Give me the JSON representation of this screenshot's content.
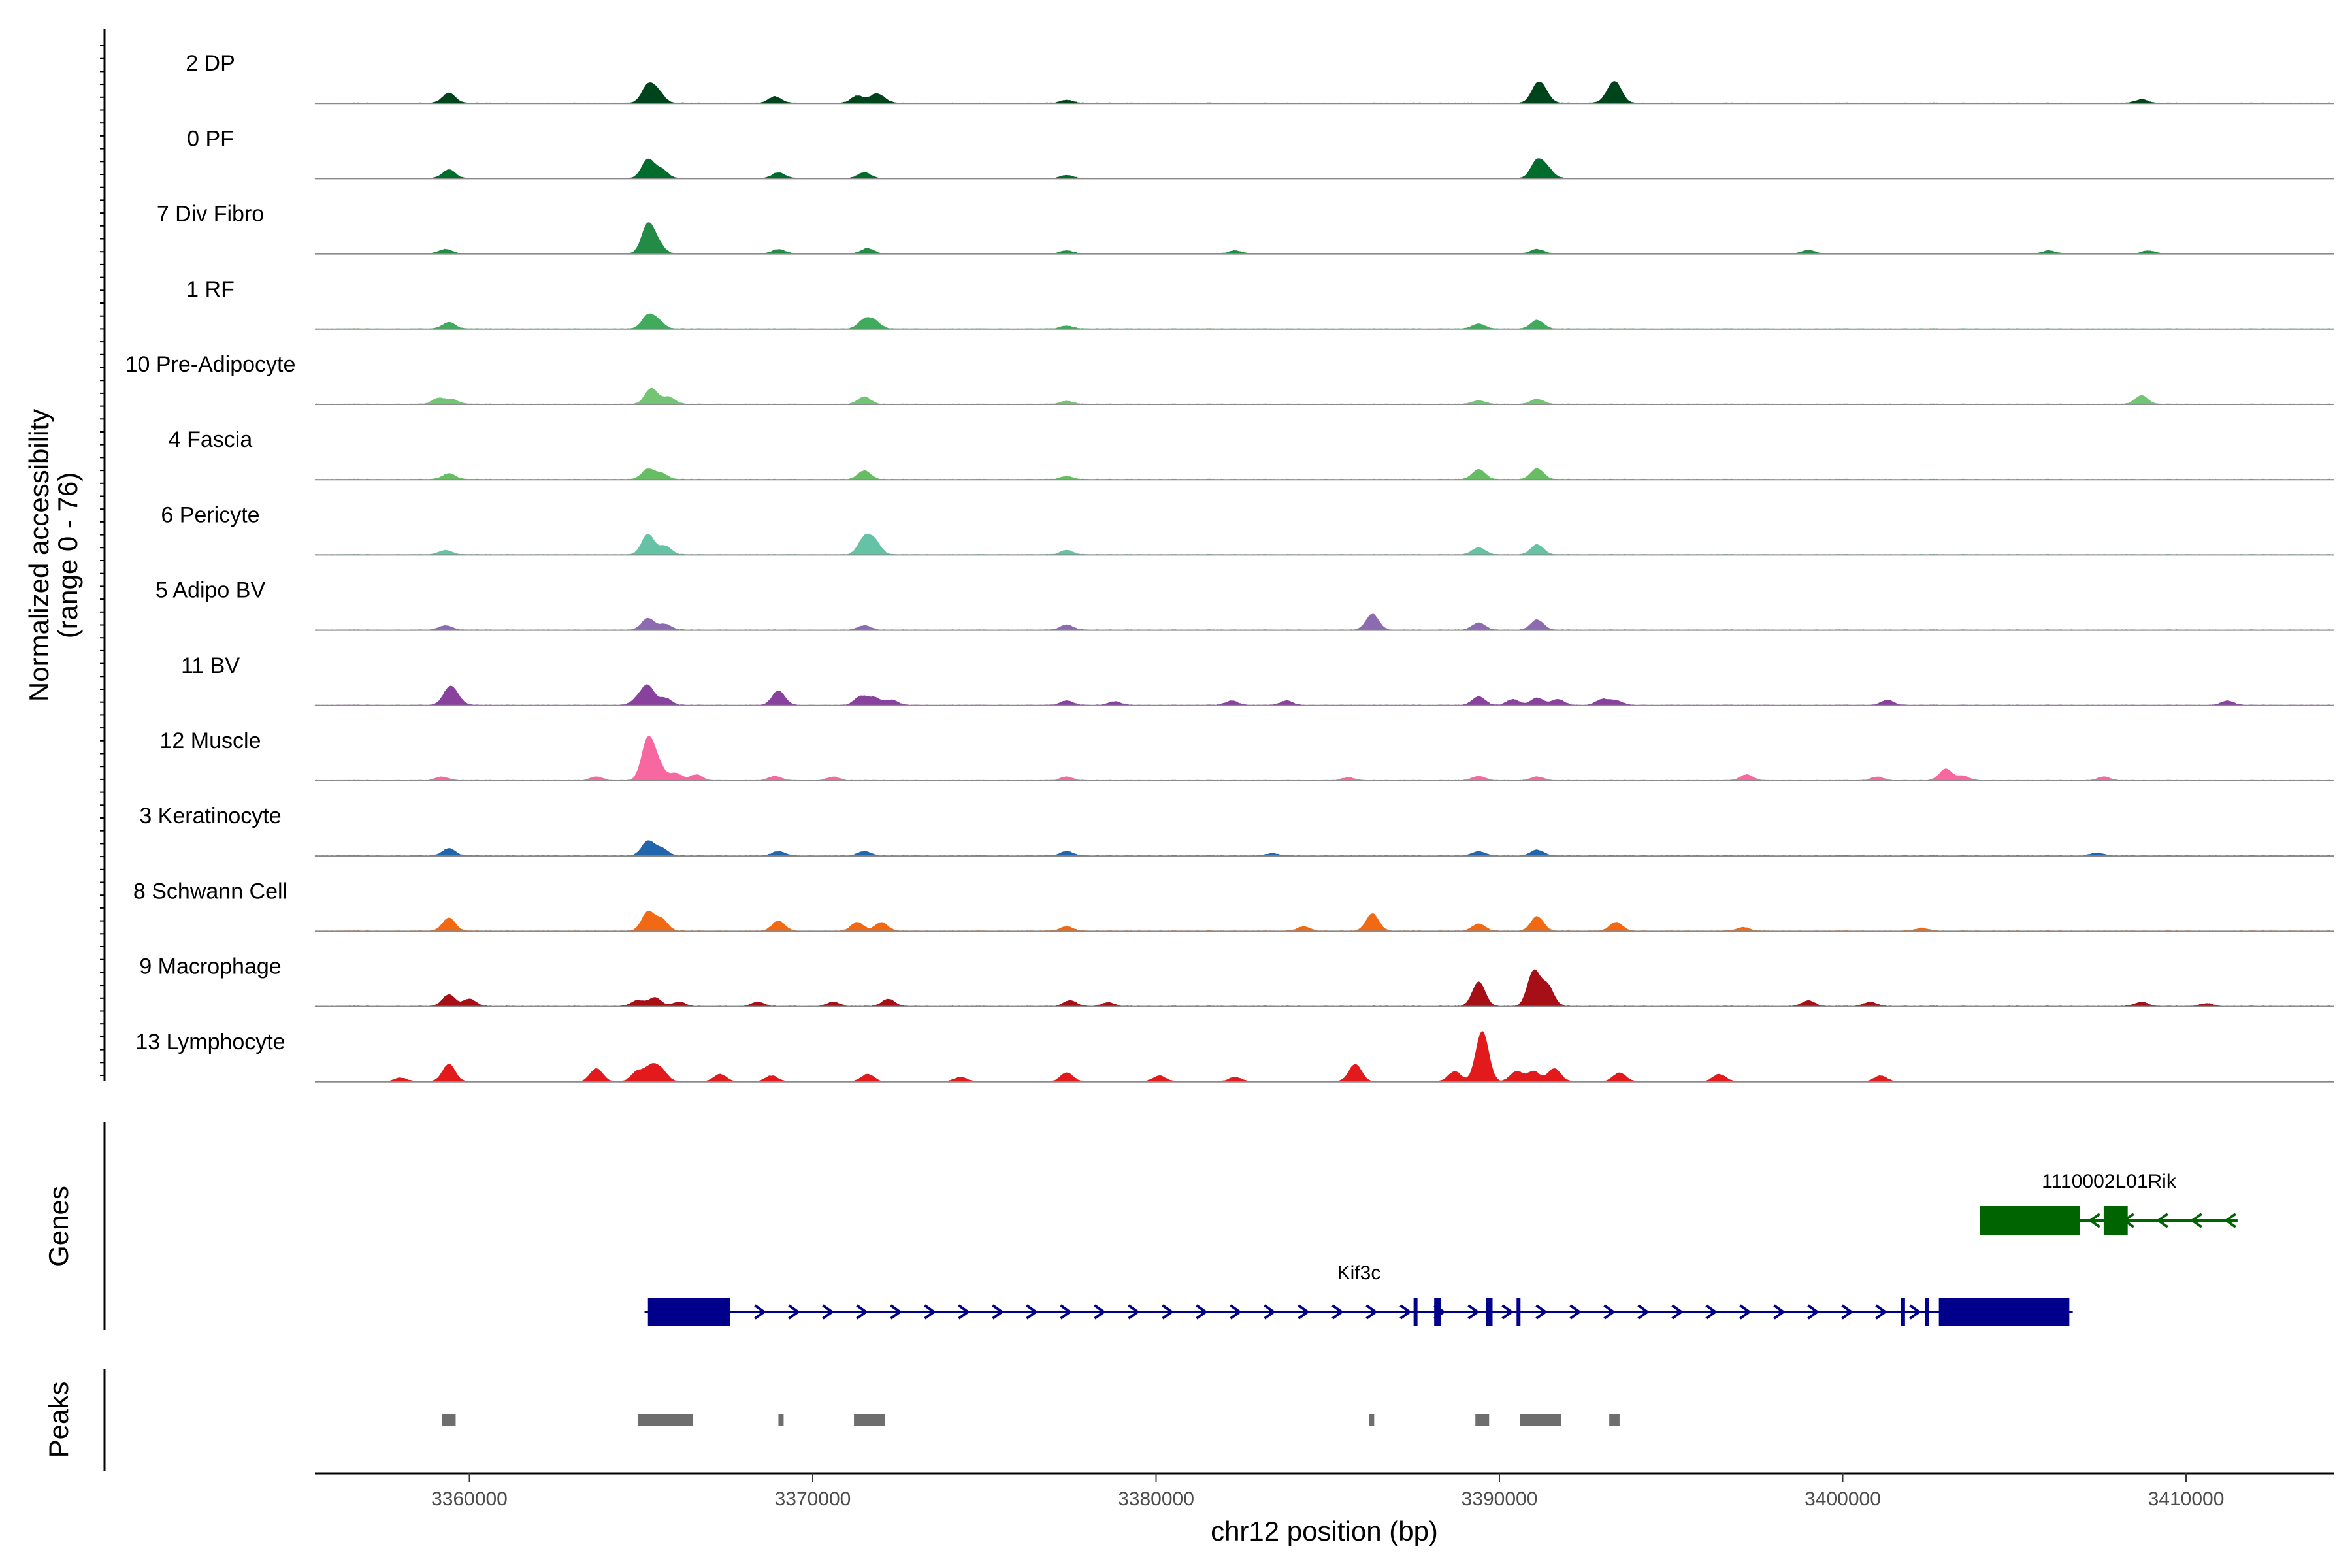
{
  "chart_data": {
    "type": "area",
    "y_axis_title": [
      "Normalized accessibility",
      "(range 0 - 76)"
    ],
    "x_axis_title": "chr12 position (bp)",
    "x_ticks": [
      3360000,
      3370000,
      3380000,
      3390000,
      3400000,
      3410000
    ],
    "x_tick_labels": [
      "3360000",
      "3370000",
      "3380000",
      "3390000",
      "3400000",
      "3410000"
    ],
    "xlim": [
      3355500,
      3414300
    ],
    "ylim": [
      0,
      76
    ],
    "tracks": [
      {
        "name": "2 DP",
        "color": "#00441b",
        "peaks": [
          [
            3359400,
            0.14
          ],
          [
            3365200,
            0.24
          ],
          [
            3365500,
            0.14
          ],
          [
            3368900,
            0.09
          ],
          [
            3371300,
            0.1
          ],
          [
            3371800,
            0.09
          ],
          [
            3372000,
            0.06
          ],
          [
            3391100,
            0.22
          ],
          [
            3391300,
            0.12
          ],
          [
            3393400,
            0.24
          ],
          [
            3393200,
            0.1
          ],
          [
            3377400,
            0.04
          ],
          [
            3408700,
            0.05
          ]
        ]
      },
      {
        "name": "0 PF",
        "color": "#006d2c",
        "peaks": [
          [
            3359400,
            0.12
          ],
          [
            3365200,
            0.26
          ],
          [
            3365600,
            0.12
          ],
          [
            3369000,
            0.08
          ],
          [
            3371500,
            0.08
          ],
          [
            3391100,
            0.24
          ],
          [
            3391400,
            0.12
          ],
          [
            3377400,
            0.04
          ]
        ]
      },
      {
        "name": "7 Div Fibro",
        "color": "#238b45",
        "peaks": [
          [
            3359300,
            0.06
          ],
          [
            3365200,
            0.4
          ],
          [
            3365500,
            0.12
          ],
          [
            3369000,
            0.06
          ],
          [
            3371600,
            0.07
          ],
          [
            3391100,
            0.06
          ],
          [
            3382300,
            0.04
          ],
          [
            3399000,
            0.05
          ],
          [
            3406000,
            0.04
          ],
          [
            3408900,
            0.04
          ],
          [
            3377400,
            0.04
          ]
        ]
      },
      {
        "name": "1 RF",
        "color": "#41ab5d",
        "peaks": [
          [
            3359400,
            0.09
          ],
          [
            3365200,
            0.18
          ],
          [
            3365500,
            0.1
          ],
          [
            3371500,
            0.12
          ],
          [
            3371800,
            0.1
          ],
          [
            3389400,
            0.07
          ],
          [
            3391100,
            0.12
          ],
          [
            3377400,
            0.04
          ]
        ]
      },
      {
        "name": "10 Pre-Adipocyte",
        "color": "#74c476",
        "peaks": [
          [
            3359100,
            0.08
          ],
          [
            3359500,
            0.06
          ],
          [
            3365300,
            0.22
          ],
          [
            3365800,
            0.1
          ],
          [
            3371500,
            0.1
          ],
          [
            3391100,
            0.07
          ],
          [
            3389400,
            0.05
          ],
          [
            3408700,
            0.12
          ],
          [
            3377400,
            0.04
          ]
        ]
      },
      {
        "name": "4 Fascia",
        "color": "#66bd63",
        "peaks": [
          [
            3359400,
            0.08
          ],
          [
            3365200,
            0.14
          ],
          [
            3365600,
            0.08
          ],
          [
            3371500,
            0.12
          ],
          [
            3389400,
            0.14
          ],
          [
            3391100,
            0.15
          ],
          [
            3377400,
            0.04
          ]
        ]
      },
      {
        "name": "6 Pericyte",
        "color": "#66c2a5",
        "peaks": [
          [
            3359300,
            0.06
          ],
          [
            3365200,
            0.28
          ],
          [
            3365700,
            0.12
          ],
          [
            3371500,
            0.22
          ],
          [
            3371800,
            0.18
          ],
          [
            3377400,
            0.06
          ],
          [
            3389400,
            0.1
          ],
          [
            3391100,
            0.14
          ]
        ]
      },
      {
        "name": "5 Adipo BV",
        "color": "#8c6bb1",
        "peaks": [
          [
            3359300,
            0.06
          ],
          [
            3365200,
            0.16
          ],
          [
            3365700,
            0.08
          ],
          [
            3371500,
            0.06
          ],
          [
            3377400,
            0.07
          ],
          [
            3386300,
            0.22
          ],
          [
            3389400,
            0.1
          ],
          [
            3391100,
            0.14
          ]
        ]
      },
      {
        "name": "11 BV",
        "color": "#88419d",
        "peaks": [
          [
            3359400,
            0.2
          ],
          [
            3359600,
            0.1
          ],
          [
            3364900,
            0.08
          ],
          [
            3365200,
            0.26
          ],
          [
            3365700,
            0.1
          ],
          [
            3369000,
            0.2
          ],
          [
            3371400,
            0.12
          ],
          [
            3371800,
            0.1
          ],
          [
            3372300,
            0.07
          ],
          [
            3377400,
            0.06
          ],
          [
            3378800,
            0.05
          ],
          [
            3382200,
            0.06
          ],
          [
            3383800,
            0.06
          ],
          [
            3389400,
            0.12
          ],
          [
            3390400,
            0.08
          ],
          [
            3391100,
            0.1
          ],
          [
            3391700,
            0.08
          ],
          [
            3393000,
            0.08
          ],
          [
            3393400,
            0.06
          ],
          [
            3401300,
            0.07
          ],
          [
            3411200,
            0.06
          ]
        ]
      },
      {
        "name": "12 Muscle",
        "color": "#f768a1",
        "peaks": [
          [
            3359200,
            0.05
          ],
          [
            3363700,
            0.05
          ],
          [
            3365200,
            0.56
          ],
          [
            3365500,
            0.2
          ],
          [
            3366000,
            0.1
          ],
          [
            3366600,
            0.08
          ],
          [
            3368900,
            0.06
          ],
          [
            3370600,
            0.05
          ],
          [
            3377400,
            0.05
          ],
          [
            3385600,
            0.04
          ],
          [
            3389400,
            0.06
          ],
          [
            3391100,
            0.05
          ],
          [
            3397200,
            0.08
          ],
          [
            3403000,
            0.16
          ],
          [
            3403500,
            0.06
          ],
          [
            3401000,
            0.05
          ],
          [
            3407600,
            0.05
          ]
        ]
      },
      {
        "name": "3 Keratinocyte",
        "color": "#2166ac",
        "peaks": [
          [
            3359400,
            0.1
          ],
          [
            3365200,
            0.2
          ],
          [
            3365600,
            0.1
          ],
          [
            3369000,
            0.06
          ],
          [
            3371500,
            0.06
          ],
          [
            3377400,
            0.06
          ],
          [
            3389400,
            0.06
          ],
          [
            3391100,
            0.08
          ],
          [
            3383400,
            0.03
          ],
          [
            3407400,
            0.04
          ]
        ]
      },
      {
        "name": "8 Schwann Cell",
        "color": "#f16913",
        "peaks": [
          [
            3359400,
            0.18
          ],
          [
            3365200,
            0.26
          ],
          [
            3365600,
            0.16
          ],
          [
            3369000,
            0.14
          ],
          [
            3371300,
            0.12
          ],
          [
            3372000,
            0.12
          ],
          [
            3377400,
            0.06
          ],
          [
            3386300,
            0.24
          ],
          [
            3389400,
            0.1
          ],
          [
            3391100,
            0.2
          ],
          [
            3393400,
            0.12
          ],
          [
            3384300,
            0.06
          ],
          [
            3397100,
            0.05
          ],
          [
            3402300,
            0.04
          ]
        ]
      },
      {
        "name": "9 Macrophage",
        "color": "#a50f15",
        "peaks": [
          [
            3359400,
            0.16
          ],
          [
            3360000,
            0.1
          ],
          [
            3364900,
            0.08
          ],
          [
            3365400,
            0.12
          ],
          [
            3366100,
            0.06
          ],
          [
            3368400,
            0.06
          ],
          [
            3370600,
            0.06
          ],
          [
            3372200,
            0.1
          ],
          [
            3377500,
            0.08
          ],
          [
            3378600,
            0.05
          ],
          [
            3389400,
            0.34
          ],
          [
            3391000,
            0.48
          ],
          [
            3391400,
            0.28
          ],
          [
            3399000,
            0.08
          ],
          [
            3400800,
            0.06
          ],
          [
            3408700,
            0.06
          ],
          [
            3410600,
            0.04
          ]
        ]
      },
      {
        "name": "13 Lymphocyte",
        "color": "#e31a1c",
        "peaks": [
          [
            3358000,
            0.05
          ],
          [
            3359400,
            0.24
          ],
          [
            3363700,
            0.18
          ],
          [
            3364900,
            0.14
          ],
          [
            3365300,
            0.2
          ],
          [
            3365600,
            0.14
          ],
          [
            3367300,
            0.1
          ],
          [
            3368800,
            0.08
          ],
          [
            3371600,
            0.1
          ],
          [
            3374300,
            0.06
          ],
          [
            3377400,
            0.12
          ],
          [
            3380100,
            0.08
          ],
          [
            3382300,
            0.06
          ],
          [
            3385800,
            0.24
          ],
          [
            3388700,
            0.14
          ],
          [
            3389500,
            0.7
          ],
          [
            3390500,
            0.14
          ],
          [
            3391000,
            0.14
          ],
          [
            3391600,
            0.18
          ],
          [
            3393500,
            0.12
          ],
          [
            3396400,
            0.1
          ],
          [
            3401100,
            0.08
          ]
        ]
      }
    ],
    "genes": [
      {
        "name": "1110002L01Rik",
        "strand": "-",
        "color": "#006400",
        "start": 3404000,
        "end": 3411500,
        "exons": [
          [
            3404000,
            3406900
          ],
          [
            3407600,
            3408300
          ]
        ],
        "row": 0
      },
      {
        "name": "Kif3c",
        "strand": "+",
        "color": "#00008b",
        "start": 3365100,
        "end": 3406700,
        "exons": [
          [
            3365200,
            3367600
          ],
          [
            3387500,
            3387600
          ],
          [
            3388100,
            3388300
          ],
          [
            3389600,
            3389800
          ],
          [
            3390500,
            3390600
          ],
          [
            3401700,
            3401800
          ],
          [
            3402400,
            3402500
          ],
          [
            3402800,
            3406600
          ]
        ],
        "row": 1
      }
    ],
    "peak_regions": [
      [
        3359200,
        3359600
      ],
      [
        3364900,
        3366500
      ],
      [
        3369000,
        3369150
      ],
      [
        3371200,
        3372100
      ],
      [
        3386200,
        3386350
      ],
      [
        3389300,
        3389700
      ],
      [
        3390600,
        3391800
      ],
      [
        3393200,
        3393500
      ]
    ],
    "panel_labels": {
      "genes": "Genes",
      "peaks": "Peaks"
    },
    "grid": false
  }
}
